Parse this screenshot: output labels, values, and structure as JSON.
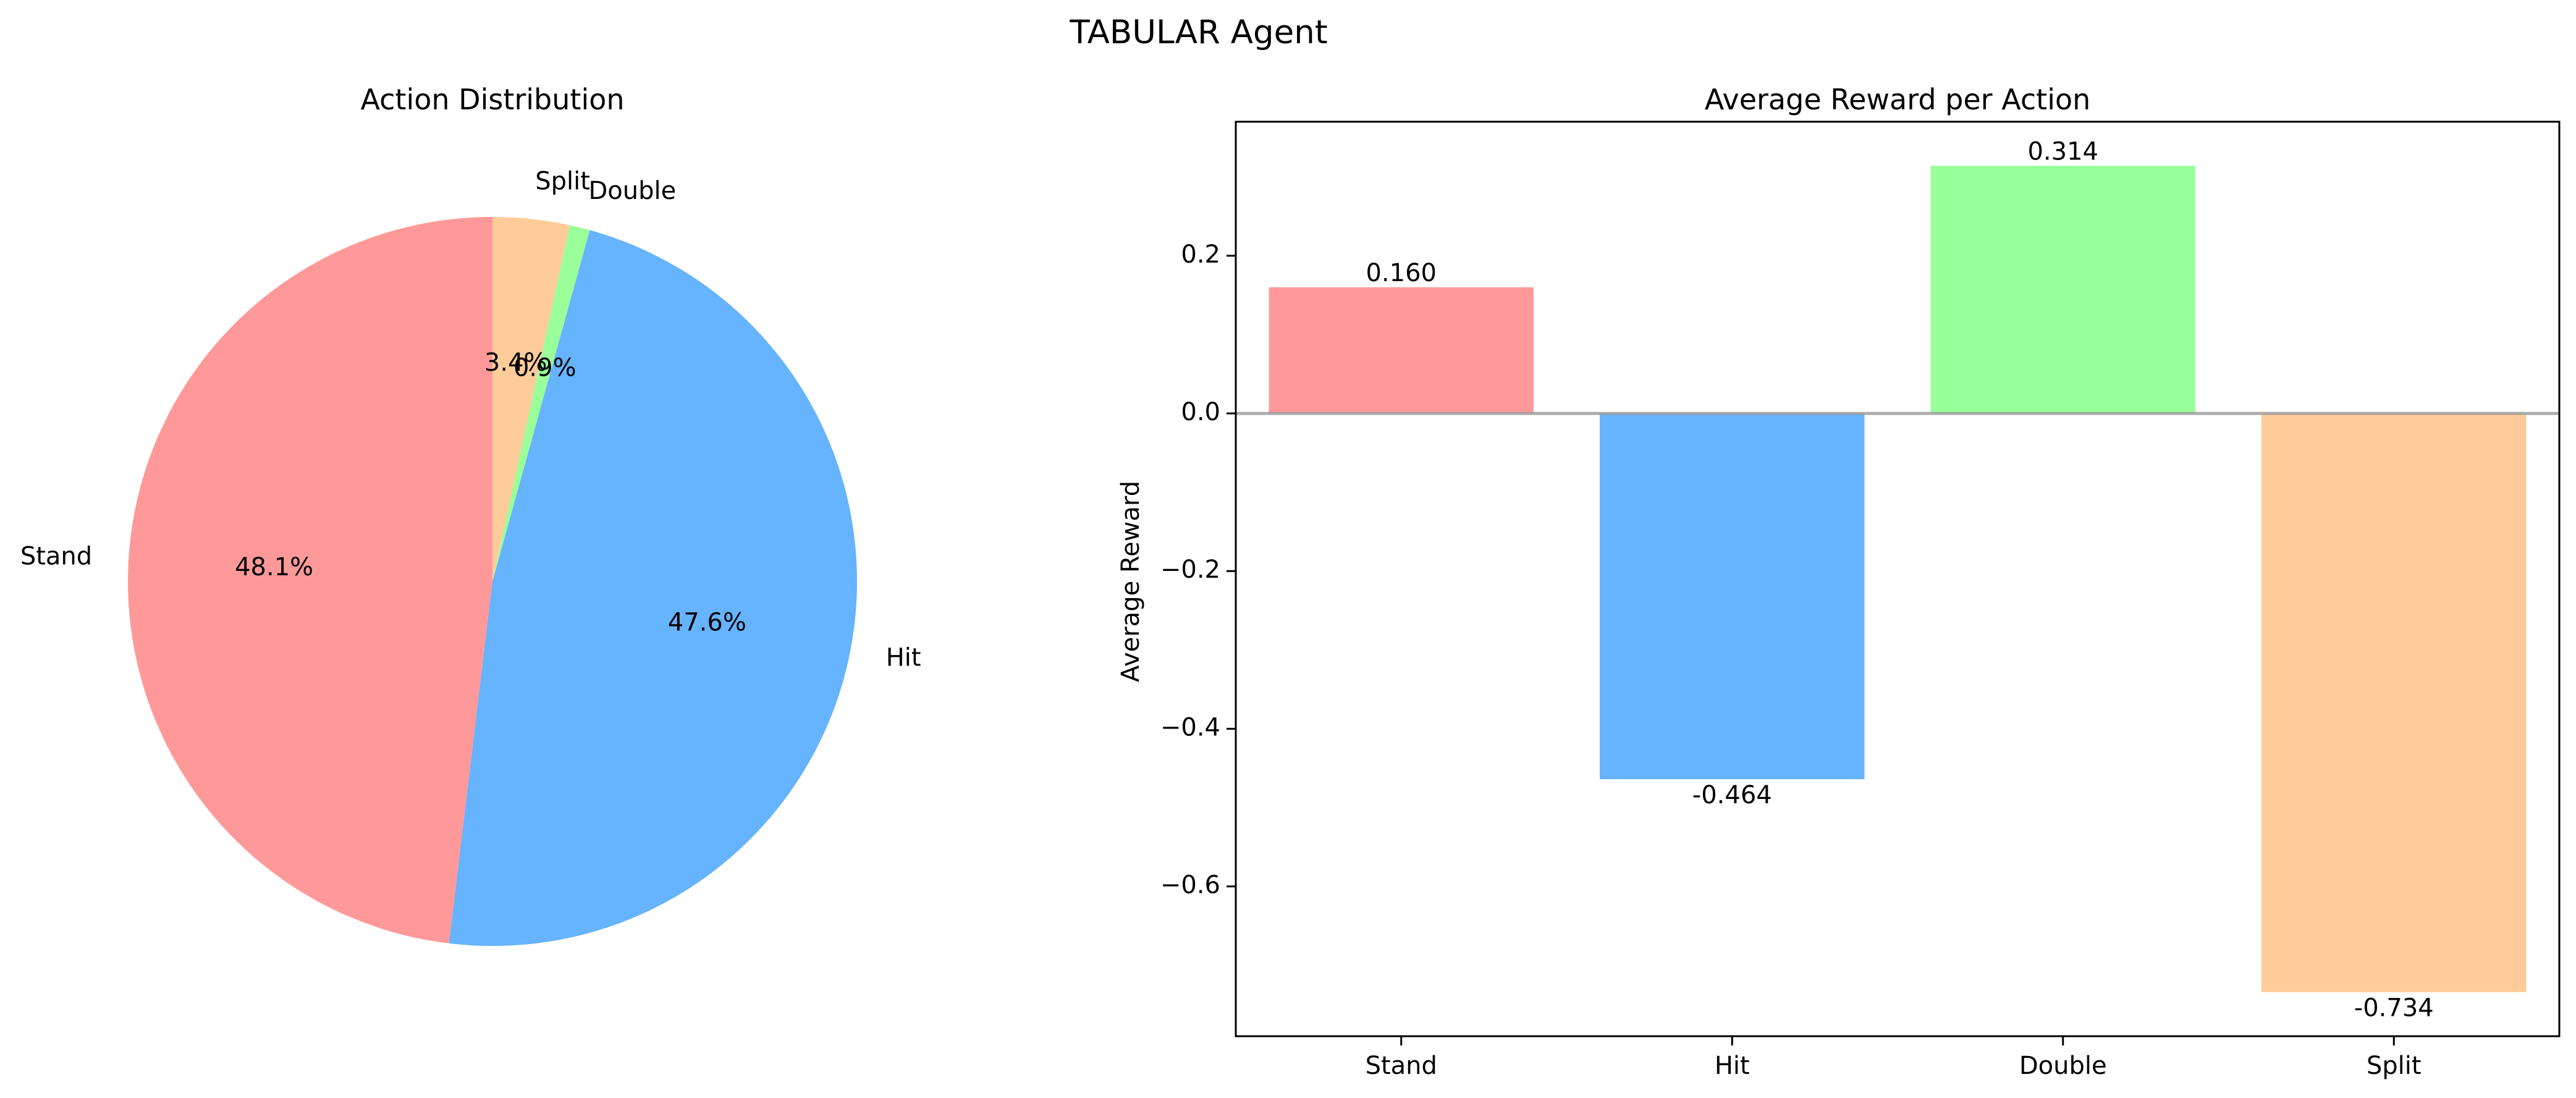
{
  "figure": {
    "title": "TABULAR Agent"
  },
  "chart_data": [
    {
      "type": "pie",
      "title": "Action Distribution",
      "labels": [
        "Stand",
        "Hit",
        "Double",
        "Split"
      ],
      "values": [
        48.1,
        47.6,
        0.9,
        3.4
      ],
      "autopct": [
        "48.1%",
        "47.6%",
        "0.9%",
        "3.4%"
      ],
      "colors": [
        "#ff9999",
        "#66b3ff",
        "#99ff99",
        "#ffcc99"
      ],
      "start_angle_deg": 90,
      "direction": "counterclockwise"
    },
    {
      "type": "bar",
      "title": "Average Reward per Action",
      "categories": [
        "Stand",
        "Hit",
        "Double",
        "Split"
      ],
      "values": [
        0.16,
        -0.464,
        0.314,
        -0.734
      ],
      "value_labels": [
        "0.160",
        "-0.464",
        "0.314",
        "-0.734"
      ],
      "colors": [
        "#ff9999",
        "#66b3ff",
        "#99ff99",
        "#ffcc99"
      ],
      "xlabel": "",
      "ylabel": "Average Reward",
      "ylim": [
        -0.79,
        0.37
      ],
      "yticks": [
        -0.6,
        -0.4,
        -0.2,
        0.0,
        0.2
      ],
      "ytick_labels": [
        "−0.6",
        "−0.4",
        "−0.2",
        "0.0",
        "0.2"
      ],
      "baseline": 0,
      "grid": false
    }
  ]
}
